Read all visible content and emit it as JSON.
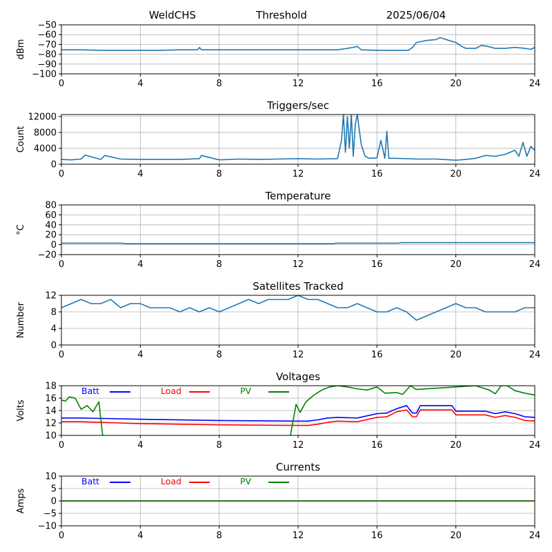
{
  "header": {
    "station": "WeldCHS",
    "mode": "Threshold",
    "date": "2025/06/04"
  },
  "colors": {
    "series": "#1f77b4",
    "grid": "#b0b0b0",
    "batt": "#0000ff",
    "load": "#ff0000",
    "pv": "#008000"
  },
  "chart_data": [
    {
      "type": "line",
      "title": "",
      "ylabel": "dBm",
      "xlim": [
        0,
        24
      ],
      "ylim": [
        -100,
        -50
      ],
      "xticks": [
        0,
        4,
        8,
        12,
        16,
        20,
        24
      ],
      "yticks": [
        -100,
        -90,
        -80,
        -70,
        -60,
        -50
      ],
      "ytick_labels": [
        "−100",
        "−90",
        "−80",
        "−70",
        "−60",
        "−50"
      ],
      "grid": true,
      "series": [
        {
          "color": "#1f77b4",
          "x": [
            0,
            1,
            2,
            3,
            4,
            5,
            6,
            6.9,
            7,
            7.1,
            8,
            9,
            10,
            11,
            12,
            13,
            14,
            14.8,
            15,
            15.2,
            16,
            17,
            17.6,
            17.8,
            18,
            18.5,
            19,
            19.2,
            19.5,
            20,
            20.3,
            20.5,
            21,
            21.3,
            21.6,
            22,
            22.5,
            23,
            23.5,
            23.8,
            24
          ],
          "y": [
            -75.5,
            -75.5,
            -76,
            -76,
            -76,
            -76,
            -75.5,
            -75.5,
            -73,
            -75.5,
            -75.5,
            -75.5,
            -75.5,
            -75.5,
            -75.5,
            -75.5,
            -75.5,
            -73,
            -72,
            -75.5,
            -76,
            -76,
            -76,
            -73,
            -68,
            -66,
            -65,
            -63,
            -65,
            -68,
            -72,
            -74,
            -74,
            -71,
            -72,
            -74,
            -74,
            -73,
            -74,
            -75,
            -73
          ]
        }
      ]
    },
    {
      "type": "line",
      "title": "Triggers/sec",
      "ylabel": "Count",
      "xlim": [
        0,
        24
      ],
      "ylim": [
        0,
        12500
      ],
      "xticks": [
        0,
        4,
        8,
        12,
        16,
        20,
        24
      ],
      "yticks": [
        0,
        4000,
        8000,
        12000
      ],
      "ytick_labels": [
        "0",
        "4000",
        "8000",
        "12000"
      ],
      "grid": true,
      "series": [
        {
          "color": "#1f77b4",
          "x": [
            0,
            0.5,
            1,
            1.2,
            2,
            2.2,
            3,
            4,
            5,
            6,
            7,
            7.1,
            8,
            9,
            10,
            11,
            12,
            13,
            14,
            14.2,
            14.3,
            14.4,
            14.5,
            14.6,
            14.7,
            14.8,
            14.9,
            15,
            15.2,
            15.4,
            15.6,
            16,
            16.2,
            16.4,
            16.5,
            16.6,
            17,
            18,
            19,
            20,
            20.5,
            21,
            21.5,
            22,
            22.5,
            23,
            23.2,
            23.4,
            23.6,
            23.8,
            24
          ],
          "y": [
            1200,
            1100,
            1300,
            2300,
            1200,
            2200,
            1300,
            1200,
            1200,
            1200,
            1400,
            2200,
            1100,
            1300,
            1200,
            1300,
            1400,
            1300,
            1400,
            6000,
            12500,
            3000,
            12000,
            4000,
            12500,
            2000,
            10000,
            12500,
            5000,
            2000,
            1500,
            1600,
            6000,
            1500,
            8300,
            1500,
            1500,
            1300,
            1300,
            1000,
            1200,
            1500,
            2200,
            2000,
            2500,
            3500,
            2000,
            5500,
            2000,
            4500,
            3500
          ]
        }
      ]
    },
    {
      "type": "line",
      "title": "Temperature",
      "ylabel": "°C",
      "xlim": [
        0,
        24
      ],
      "ylim": [
        -20,
        80
      ],
      "xticks": [
        0,
        4,
        8,
        12,
        16,
        20,
        24
      ],
      "yticks": [
        -20,
        0,
        20,
        40,
        60,
        80
      ],
      "ytick_labels": [
        "−20",
        "0",
        "20",
        "40",
        "60",
        "80"
      ],
      "grid": true,
      "series": [
        {
          "color": "#1f77b4",
          "x": [
            0,
            3.1,
            3.2,
            13.8,
            13.9,
            17.1,
            17.2,
            24
          ],
          "y": [
            3,
            3,
            2,
            2,
            3,
            3,
            4,
            4
          ]
        }
      ]
    },
    {
      "type": "line",
      "title": "Satellites Tracked",
      "ylabel": "Number",
      "xlim": [
        0,
        24
      ],
      "ylim": [
        0,
        12
      ],
      "xticks": [
        0,
        4,
        8,
        12,
        16,
        20,
        24
      ],
      "yticks": [
        0,
        4,
        8,
        12
      ],
      "ytick_labels": [
        "0",
        "4",
        "8",
        "12"
      ],
      "grid": true,
      "series": [
        {
          "color": "#1f77b4",
          "x": [
            0,
            0.5,
            1,
            1.5,
            2,
            2.5,
            3,
            3.5,
            4,
            4.5,
            5,
            5.5,
            6,
            6.5,
            7,
            7.5,
            8,
            8.5,
            9,
            9.5,
            10,
            10.5,
            11,
            11.5,
            12,
            12.5,
            13,
            13.5,
            14,
            14.5,
            15,
            15.5,
            16,
            16.5,
            17,
            17.5,
            18,
            18.5,
            19,
            19.5,
            20,
            20.5,
            21,
            21.5,
            22,
            22.5,
            23,
            23.5,
            24
          ],
          "y": [
            9,
            10,
            11,
            10,
            10,
            11,
            9,
            10,
            10,
            9,
            9,
            9,
            8,
            9,
            8,
            9,
            8,
            9,
            10,
            11,
            10,
            11,
            11,
            11,
            12,
            11,
            11,
            10,
            9,
            9,
            10,
            9,
            8,
            8,
            9,
            8,
            6,
            7,
            8,
            9,
            10,
            9,
            9,
            8,
            8,
            8,
            8,
            9,
            9
          ]
        }
      ]
    },
    {
      "type": "line",
      "title": "Voltages",
      "ylabel": "Volts",
      "xlim": [
        0,
        24
      ],
      "ylim": [
        10,
        18
      ],
      "xticks": [
        0,
        4,
        8,
        12,
        16,
        20,
        24
      ],
      "yticks": [
        10,
        12,
        14,
        16,
        18
      ],
      "ytick_labels": [
        "10",
        "12",
        "14",
        "16",
        "18"
      ],
      "grid": true,
      "legend": "top-left",
      "series": [
        {
          "name": "Batt",
          "color": "#0000ff",
          "x": [
            0,
            1,
            4,
            8,
            12,
            12.5,
            13,
            13.5,
            14,
            15,
            16,
            16.5,
            17,
            17.5,
            17.8,
            18,
            18.2,
            18.5,
            19,
            19.5,
            19.8,
            20,
            21,
            21.5,
            22,
            22.5,
            23,
            23.5,
            24
          ],
          "y": [
            12.8,
            12.8,
            12.6,
            12.4,
            12.3,
            12.3,
            12.5,
            12.8,
            12.9,
            12.8,
            13.5,
            13.6,
            14.3,
            14.8,
            13.6,
            13.6,
            14.8,
            14.8,
            14.8,
            14.8,
            14.8,
            13.9,
            13.9,
            13.9,
            13.5,
            13.8,
            13.5,
            13.0,
            12.9
          ]
        },
        {
          "name": "Load",
          "color": "#ff0000",
          "x": [
            0,
            1,
            4,
            8,
            12,
            12.5,
            13,
            13.5,
            14,
            15,
            16,
            16.5,
            17,
            17.5,
            17.8,
            18,
            18.2,
            18.5,
            19,
            19.5,
            19.8,
            20,
            21,
            21.5,
            22,
            22.5,
            23,
            23.5,
            24
          ],
          "y": [
            12.2,
            12.2,
            11.9,
            11.7,
            11.6,
            11.6,
            11.8,
            12.1,
            12.3,
            12.2,
            12.9,
            13.0,
            13.8,
            14.1,
            13.0,
            13.0,
            14.1,
            14.1,
            14.1,
            14.1,
            14.1,
            13.3,
            13.3,
            13.3,
            12.9,
            13.2,
            12.9,
            12.4,
            12.3
          ]
        },
        {
          "name": "PV",
          "color": "#008000",
          "x": [
            0,
            0.2,
            0.4,
            0.7,
            1.0,
            1.3,
            1.6,
            1.9,
            2.1,
            11.6,
            11.9,
            12.1,
            12.4,
            12.8,
            13.2,
            13.6,
            14.0,
            14.5,
            15.0,
            15.5,
            16.0,
            16.4,
            17.0,
            17.3,
            17.7,
            18.0,
            21.0,
            21.7,
            21.9,
            22.0,
            22.3,
            22.6,
            23.0,
            23.5,
            24.0
          ],
          "y": [
            15.7,
            15.5,
            16.2,
            16.0,
            14.2,
            14.8,
            13.8,
            15.4,
            9.8,
            9.8,
            15.0,
            13.7,
            15.4,
            16.5,
            17.3,
            17.8,
            18.0,
            17.8,
            17.5,
            17.3,
            17.8,
            16.8,
            16.9,
            16.6,
            18.0,
            17.4,
            18.0,
            17.3,
            16.9,
            16.7,
            18.0,
            18.0,
            17.2,
            16.8,
            16.5
          ]
        }
      ]
    },
    {
      "type": "line",
      "title": "Currents",
      "ylabel": "Amps",
      "xlim": [
        0,
        24
      ],
      "ylim": [
        -10,
        10
      ],
      "xticks": [
        0,
        4,
        8,
        12,
        16,
        20,
        24
      ],
      "yticks": [
        -10,
        -5,
        0,
        5,
        10
      ],
      "ytick_labels": [
        "−10",
        "−5",
        "0",
        "5",
        "10"
      ],
      "grid": true,
      "legend": "top-left",
      "series": [
        {
          "name": "Batt",
          "color": "#0000ff",
          "x": [
            0,
            24
          ],
          "y": [
            0,
            0
          ]
        },
        {
          "name": "Load",
          "color": "#ff0000",
          "x": [
            0,
            24
          ],
          "y": [
            0,
            0
          ]
        },
        {
          "name": "PV",
          "color": "#008000",
          "x": [
            0,
            24
          ],
          "y": [
            0,
            0
          ]
        }
      ]
    }
  ]
}
